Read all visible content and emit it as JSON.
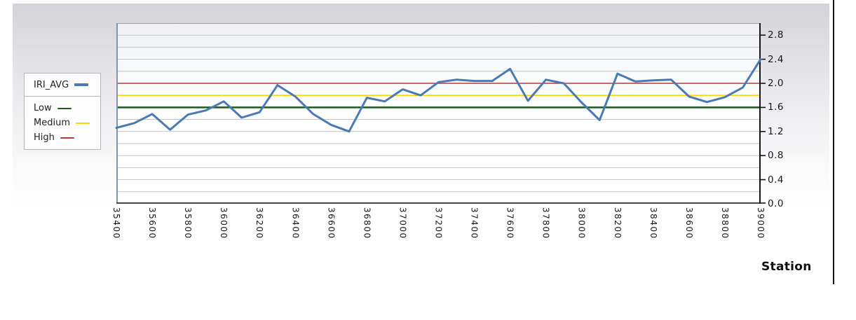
{
  "chart_data": {
    "type": "line",
    "title": "",
    "xlabel": "Station",
    "ylabel": "",
    "xlim": [
      35400,
      39000
    ],
    "ylim": [
      0,
      3.0
    ],
    "grid": "horizontal minor gridlines every 0.2, plot framed, y axis on right side",
    "legend_position": "left of plot",
    "x_tick_labels": [
      "35400",
      "35600",
      "35800",
      "36000",
      "36200",
      "36400",
      "36600",
      "36800",
      "37000",
      "37200",
      "37400",
      "37600",
      "37800",
      "38000",
      "38200",
      "38400",
      "38600",
      "38800",
      "39000"
    ],
    "y_tick_labels": [
      "0.0",
      "0.4",
      "0.8",
      "1.2",
      "1.6",
      "2.0",
      "2.4",
      "2.8"
    ],
    "series": [
      {
        "name": "IRI_AVG",
        "color": "#4a7ab2",
        "x": [
          35400,
          35500,
          35600,
          35700,
          35800,
          35900,
          36000,
          36100,
          36200,
          36300,
          36400,
          36500,
          36600,
          36700,
          36800,
          36900,
          37000,
          37100,
          37200,
          37300,
          37400,
          37500,
          37600,
          37700,
          37800,
          37900,
          38000,
          38100,
          38200,
          38300,
          38400,
          38500,
          38600,
          38700,
          38800,
          38900,
          39000
        ],
        "values": [
          1.26,
          1.34,
          1.49,
          1.23,
          1.48,
          1.55,
          1.7,
          1.43,
          1.52,
          1.97,
          1.78,
          1.49,
          1.31,
          1.2,
          1.76,
          1.7,
          1.9,
          1.8,
          2.02,
          2.06,
          2.04,
          2.04,
          2.24,
          1.71,
          2.06,
          2.0,
          1.68,
          1.39,
          2.16,
          2.03,
          2.05,
          2.06,
          1.78,
          1.69,
          1.77,
          1.93,
          2.4
        ]
      }
    ],
    "reference_lines": [
      {
        "name": "Low",
        "value": 1.6,
        "color": "#20591f"
      },
      {
        "name": "Medium",
        "value": 1.8,
        "color": "#ffd400"
      },
      {
        "name": "High",
        "value": 2.0,
        "color": "#b43b3b"
      }
    ]
  },
  "legend": {
    "series_label": "IRI_AVG",
    "items": [
      {
        "label": "Low"
      },
      {
        "label": "Medium"
      },
      {
        "label": "High"
      }
    ]
  },
  "axis": {
    "x_title": "Station"
  },
  "colors": {
    "gridline": "#c3c3c6",
    "plot_frame_left": "#8591b2",
    "plot_frame_top": "#a2a2a6",
    "plot_frame_bottom": "#45454d",
    "y_axis": "#151518"
  }
}
